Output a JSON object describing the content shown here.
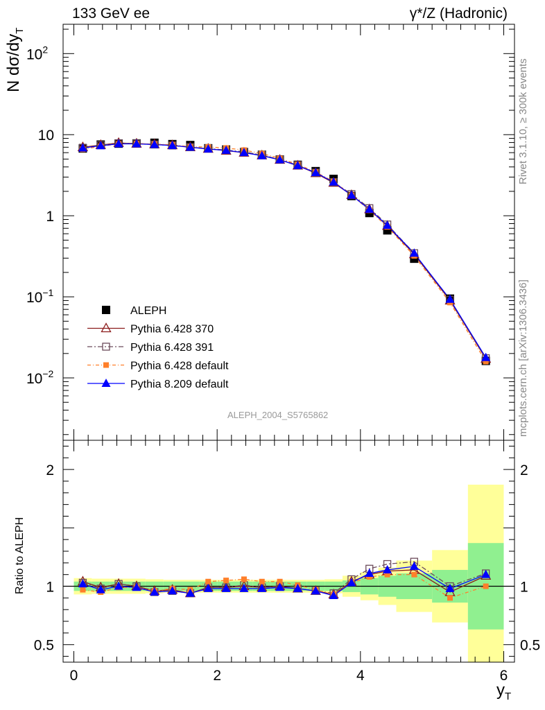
{
  "header": {
    "left": "133 GeV ee",
    "right": "γ*/Z (Hadronic)"
  },
  "side_text": {
    "rivet": "Rivet 3.1.10, ≥ 300k events",
    "mcplots": "mcplots.cern.ch [arXiv:1306.3436]"
  },
  "watermark": "ALEPH_2004_S5765862",
  "upper_ylabel": "N dσ/dy",
  "upper_ylabel_sub": "T",
  "lower_ylabel": "Ratio to ALEPH",
  "xlabel": "y",
  "xlabel_sub": "T",
  "colors": {
    "aleph": "#000000",
    "p370": "#8b1a1a",
    "p391": "#6b4a5a",
    "pdef": "#ff7f2a",
    "p8": "#0000ff",
    "band_inner": "#90f090",
    "band_outer": "#ffff99"
  },
  "chart_data": [
    {
      "type": "scatter",
      "yscale": "log",
      "xlim": [
        -0.15,
        6.15
      ],
      "ylim": [
        0.0017,
        230
      ],
      "y_ticks": [
        {
          "value": 100,
          "label": "10",
          "exp": "2"
        },
        {
          "value": 10,
          "label": "10",
          "exp": ""
        },
        {
          "value": 1,
          "label": "1",
          "exp": ""
        },
        {
          "value": 0.1,
          "label": "10",
          "exp": "−1"
        },
        {
          "value": 0.01,
          "label": "10",
          "exp": "−2"
        }
      ],
      "x": [
        0.125,
        0.375,
        0.625,
        0.875,
        1.125,
        1.375,
        1.625,
        1.875,
        2.125,
        2.375,
        2.625,
        2.875,
        3.125,
        3.375,
        3.625,
        3.875,
        4.125,
        4.375,
        4.75,
        5.25,
        5.75
      ],
      "series": [
        {
          "name": "ALEPH",
          "marker": "square",
          "values": [
            6.75,
            7.55,
            7.75,
            7.8,
            7.95,
            7.65,
            7.45,
            6.8,
            6.55,
            6.1,
            5.65,
            4.95,
            4.25,
            3.55,
            2.85,
            1.75,
            1.08,
            0.66,
            0.295,
            0.095,
            0.0162
          ]
        },
        {
          "name": "Pythia 6.428 370",
          "marker": "triangle-open",
          "values": [
            7.0,
            7.45,
            7.9,
            7.75,
            7.6,
            7.4,
            7.0,
            6.7,
            6.35,
            6.0,
            5.55,
            4.9,
            4.15,
            3.35,
            2.55,
            1.8,
            1.2,
            0.75,
            0.335,
            0.09,
            0.0172
          ]
        },
        {
          "name": "Pythia 6.428 391",
          "marker": "square-open",
          "values": [
            6.9,
            7.4,
            7.85,
            7.8,
            7.55,
            7.35,
            7.0,
            6.75,
            6.45,
            6.15,
            5.6,
            4.95,
            4.2,
            3.4,
            2.6,
            1.85,
            1.24,
            0.78,
            0.345,
            0.092,
            0.0175
          ]
        },
        {
          "name": "Pythia 6.428 default",
          "marker": "square-small",
          "values": [
            6.6,
            7.2,
            7.7,
            7.75,
            7.65,
            7.5,
            7.1,
            7.05,
            6.85,
            6.45,
            5.85,
            5.1,
            4.3,
            3.45,
            2.65,
            1.79,
            1.17,
            0.73,
            0.32,
            0.085,
            0.0159
          ]
        },
        {
          "name": "Pythia 8.209 default",
          "marker": "triangle",
          "values": [
            6.85,
            7.3,
            7.7,
            7.7,
            7.55,
            7.35,
            7.0,
            6.65,
            6.4,
            6.0,
            5.5,
            4.9,
            4.15,
            3.4,
            2.6,
            1.79,
            1.2,
            0.76,
            0.345,
            0.093,
            0.0178
          ]
        }
      ],
      "legend_position": "lower-left"
    },
    {
      "type": "scatter",
      "yscale": "linear",
      "xlim": [
        -0.15,
        6.15
      ],
      "ylim": [
        0.35,
        2.25
      ],
      "x_ticks": [
        0,
        2,
        4,
        6
      ],
      "y_ticks": [
        0.5,
        1,
        2
      ],
      "bins": [
        [
          0,
          0.25
        ],
        [
          0.25,
          0.5
        ],
        [
          0.5,
          0.75
        ],
        [
          0.75,
          1
        ],
        [
          1,
          1.25
        ],
        [
          1.25,
          1.5
        ],
        [
          1.5,
          1.75
        ],
        [
          1.75,
          2
        ],
        [
          2,
          2.25
        ],
        [
          2.25,
          2.5
        ],
        [
          2.5,
          2.75
        ],
        [
          2.75,
          3
        ],
        [
          3,
          3.25
        ],
        [
          3.25,
          3.5
        ],
        [
          3.5,
          3.75
        ],
        [
          3.75,
          4
        ],
        [
          4,
          4.25
        ],
        [
          4.25,
          4.5
        ],
        [
          4.5,
          5
        ],
        [
          5,
          5.5
        ],
        [
          5.5,
          6
        ]
      ],
      "band_inner": [
        0.04,
        0.04,
        0.04,
        0.04,
        0.04,
        0.04,
        0.04,
        0.04,
        0.04,
        0.04,
        0.04,
        0.04,
        0.04,
        0.04,
        0.04,
        0.05,
        0.07,
        0.09,
        0.11,
        0.14,
        0.37
      ],
      "band_outer": [
        0.07,
        0.065,
        0.065,
        0.065,
        0.06,
        0.055,
        0.055,
        0.055,
        0.055,
        0.055,
        0.055,
        0.055,
        0.055,
        0.055,
        0.06,
        0.09,
        0.12,
        0.16,
        0.22,
        0.31,
        0.87
      ],
      "x": [
        0.125,
        0.375,
        0.625,
        0.875,
        1.125,
        1.375,
        1.625,
        1.875,
        2.125,
        2.375,
        2.625,
        2.875,
        3.125,
        3.375,
        3.625,
        3.875,
        4.125,
        4.375,
        4.75,
        5.25,
        5.75
      ],
      "series": [
        {
          "name": "Pythia 6.428 370",
          "values": [
            1.04,
            0.99,
            1.02,
            1.0,
            0.96,
            0.97,
            0.94,
            0.99,
            0.99,
            1.0,
            0.99,
            1.0,
            0.98,
            0.96,
            0.93,
            1.04,
            1.1,
            1.13,
            1.14,
            0.95,
            1.09
          ]
        },
        {
          "name": "Pythia 6.428 391",
          "values": [
            1.03,
            0.98,
            1.02,
            1.0,
            0.95,
            0.96,
            0.94,
            0.99,
            0.99,
            1.01,
            0.99,
            1.0,
            0.98,
            0.96,
            0.94,
            1.06,
            1.15,
            1.19,
            1.21,
            1.0,
            1.11
          ]
        },
        {
          "name": "Pythia 6.428 default",
          "values": [
            0.97,
            0.95,
            0.99,
            0.99,
            0.96,
            0.98,
            0.97,
            1.04,
            1.05,
            1.06,
            1.04,
            1.04,
            1.01,
            0.97,
            0.93,
            1.03,
            1.08,
            1.1,
            1.1,
            0.9,
            1.0
          ]
        },
        {
          "name": "Pythia 8.209 default",
          "values": [
            1.02,
            0.97,
            1.0,
            0.99,
            0.95,
            0.96,
            0.94,
            0.98,
            0.98,
            0.98,
            0.98,
            0.99,
            0.98,
            0.96,
            0.92,
            1.03,
            1.11,
            1.14,
            1.17,
            0.98,
            1.1
          ]
        }
      ]
    }
  ]
}
